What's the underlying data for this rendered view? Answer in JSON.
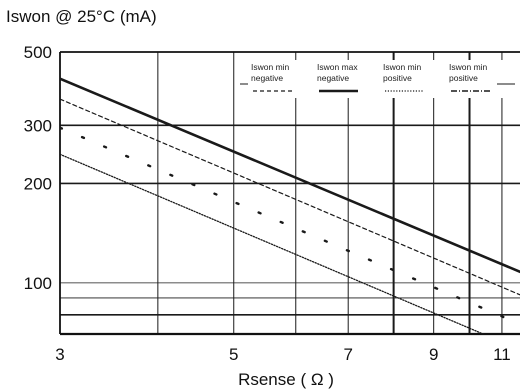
{
  "chart_data": {
    "type": "line",
    "title": "",
    "ylabel": "Iswon @ 25°C (mA)",
    "xlabel": "Rsense ( Ω )",
    "xscale": "log",
    "yscale": "log",
    "xlim": [
      3,
      11.6
    ],
    "ylim": [
      70,
      500
    ],
    "x_ticks": [
      3,
      5,
      7,
      9,
      11
    ],
    "y_ticks": [
      100,
      200,
      300,
      500
    ],
    "grid": true,
    "legend_position": "top-right",
    "series": [
      {
        "name": "Iswon max negative",
        "style": "solid-thick",
        "color": "#1a1a1a",
        "x": [
          3,
          11.6
        ],
        "y": [
          415,
          108
        ]
      },
      {
        "name": "Iswon min negative",
        "style": "dashed",
        "color": "#1a1a1a",
        "x": [
          3,
          11.6
        ],
        "y": [
          360,
          92
        ]
      },
      {
        "name": "Iswon min positive",
        "style": "dotted",
        "color": "#1a1a1a",
        "x": [
          3,
          11.2
        ],
        "y": [
          245,
          65
        ]
      },
      {
        "name": "Iswon min positive",
        "style": "dash-dot",
        "color": "#1a1a1a",
        "x": [
          3,
          11.6
        ],
        "y": [
          295,
          75
        ]
      }
    ],
    "legend": [
      {
        "line1": "Iswon min",
        "line2": "negative",
        "style": "dashed"
      },
      {
        "line1": "Iswon max",
        "line2": "negative",
        "style": "solid-thick"
      },
      {
        "line1": "Iswon min",
        "line2": "positive",
        "style": "dotted"
      },
      {
        "line1": "Iswon min",
        "line2": "positive",
        "style": "dash-dot"
      }
    ]
  }
}
